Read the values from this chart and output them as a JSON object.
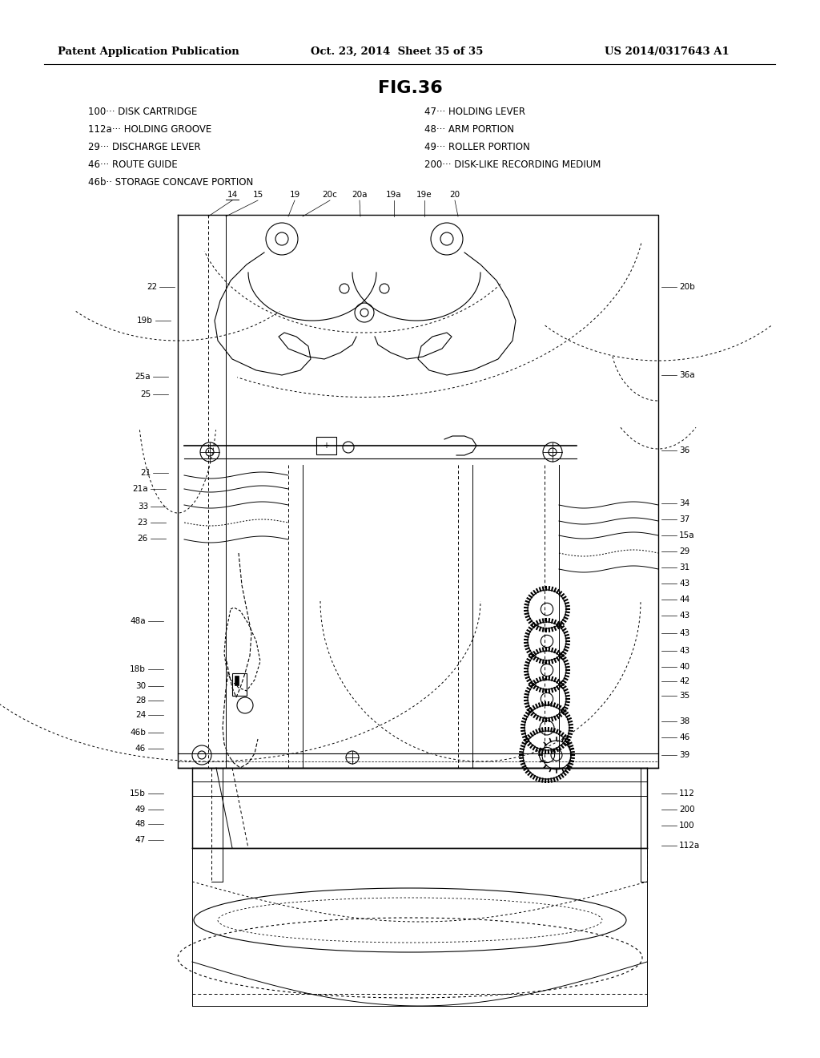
{
  "page_header_left": "Patent Application Publication",
  "page_header_mid": "Oct. 23, 2014  Sheet 35 of 35",
  "page_header_right": "US 2014/0317643 A1",
  "fig_title": "FIG.36",
  "legend_left": [
    [
      "100··· DISK CARTRIDGE",
      110,
      133
    ],
    [
      "112a··· HOLDING GROOVE",
      110,
      155
    ],
    [
      "29··· DISCHARGE LEVER",
      110,
      177
    ],
    [
      "46··· ROUTE GUIDE",
      110,
      199
    ],
    [
      "46b·· STORAGE CONCAVE PORTION",
      110,
      221
    ]
  ],
  "legend_right": [
    [
      "47··· HOLDING LEVER",
      530,
      133
    ],
    [
      "48··· ARM PORTION",
      530,
      155
    ],
    [
      "49··· ROLLER PORTION",
      530,
      177
    ],
    [
      "200··· DISK-LIKE RECORDING MEDIUM",
      530,
      199
    ]
  ],
  "top_refs": [
    [
      "14",
      290,
      248
    ],
    [
      "15",
      322,
      248
    ],
    [
      "19",
      368,
      248
    ],
    [
      "20c",
      412,
      248
    ],
    [
      "20a",
      449,
      248
    ],
    [
      "19a",
      492,
      248
    ],
    [
      "19e",
      530,
      248
    ],
    [
      "20",
      568,
      248
    ]
  ],
  "left_refs": [
    [
      "22",
      196,
      358
    ],
    [
      "19b",
      191,
      400
    ],
    [
      "25a",
      188,
      470
    ],
    [
      "25",
      188,
      492
    ],
    [
      "21",
      188,
      590
    ],
    [
      "21a",
      185,
      610
    ],
    [
      "33",
      185,
      632
    ],
    [
      "23",
      185,
      652
    ],
    [
      "26",
      185,
      672
    ],
    [
      "48a",
      182,
      775
    ],
    [
      "18b",
      182,
      835
    ],
    [
      "30",
      182,
      856
    ],
    [
      "28",
      182,
      874
    ],
    [
      "24",
      182,
      892
    ],
    [
      "46b",
      182,
      914
    ],
    [
      "46",
      182,
      934
    ],
    [
      "15b",
      182,
      990
    ],
    [
      "49",
      182,
      1010
    ],
    [
      "48",
      182,
      1028
    ],
    [
      "47",
      182,
      1048
    ]
  ],
  "right_refs": [
    [
      "20b",
      848,
      358
    ],
    [
      "36a",
      848,
      468
    ],
    [
      "36",
      848,
      562
    ],
    [
      "34",
      848,
      628
    ],
    [
      "37",
      848,
      648
    ],
    [
      "15a",
      848,
      668
    ],
    [
      "29",
      848,
      688
    ],
    [
      "31",
      848,
      708
    ],
    [
      "43",
      848,
      728
    ],
    [
      "44",
      848,
      748
    ],
    [
      "43",
      848,
      768
    ],
    [
      "43",
      848,
      790
    ],
    [
      "43",
      848,
      812
    ],
    [
      "40",
      848,
      832
    ],
    [
      "42",
      848,
      850
    ],
    [
      "35",
      848,
      868
    ],
    [
      "38",
      848,
      900
    ],
    [
      "46",
      848,
      920
    ],
    [
      "39",
      848,
      942
    ],
    [
      "112",
      848,
      990
    ],
    [
      "200",
      848,
      1010
    ],
    [
      "100",
      848,
      1030
    ],
    [
      "112a",
      848,
      1055
    ]
  ],
  "bg_color": "#ffffff",
  "lc": "#000000",
  "tc": "#000000"
}
